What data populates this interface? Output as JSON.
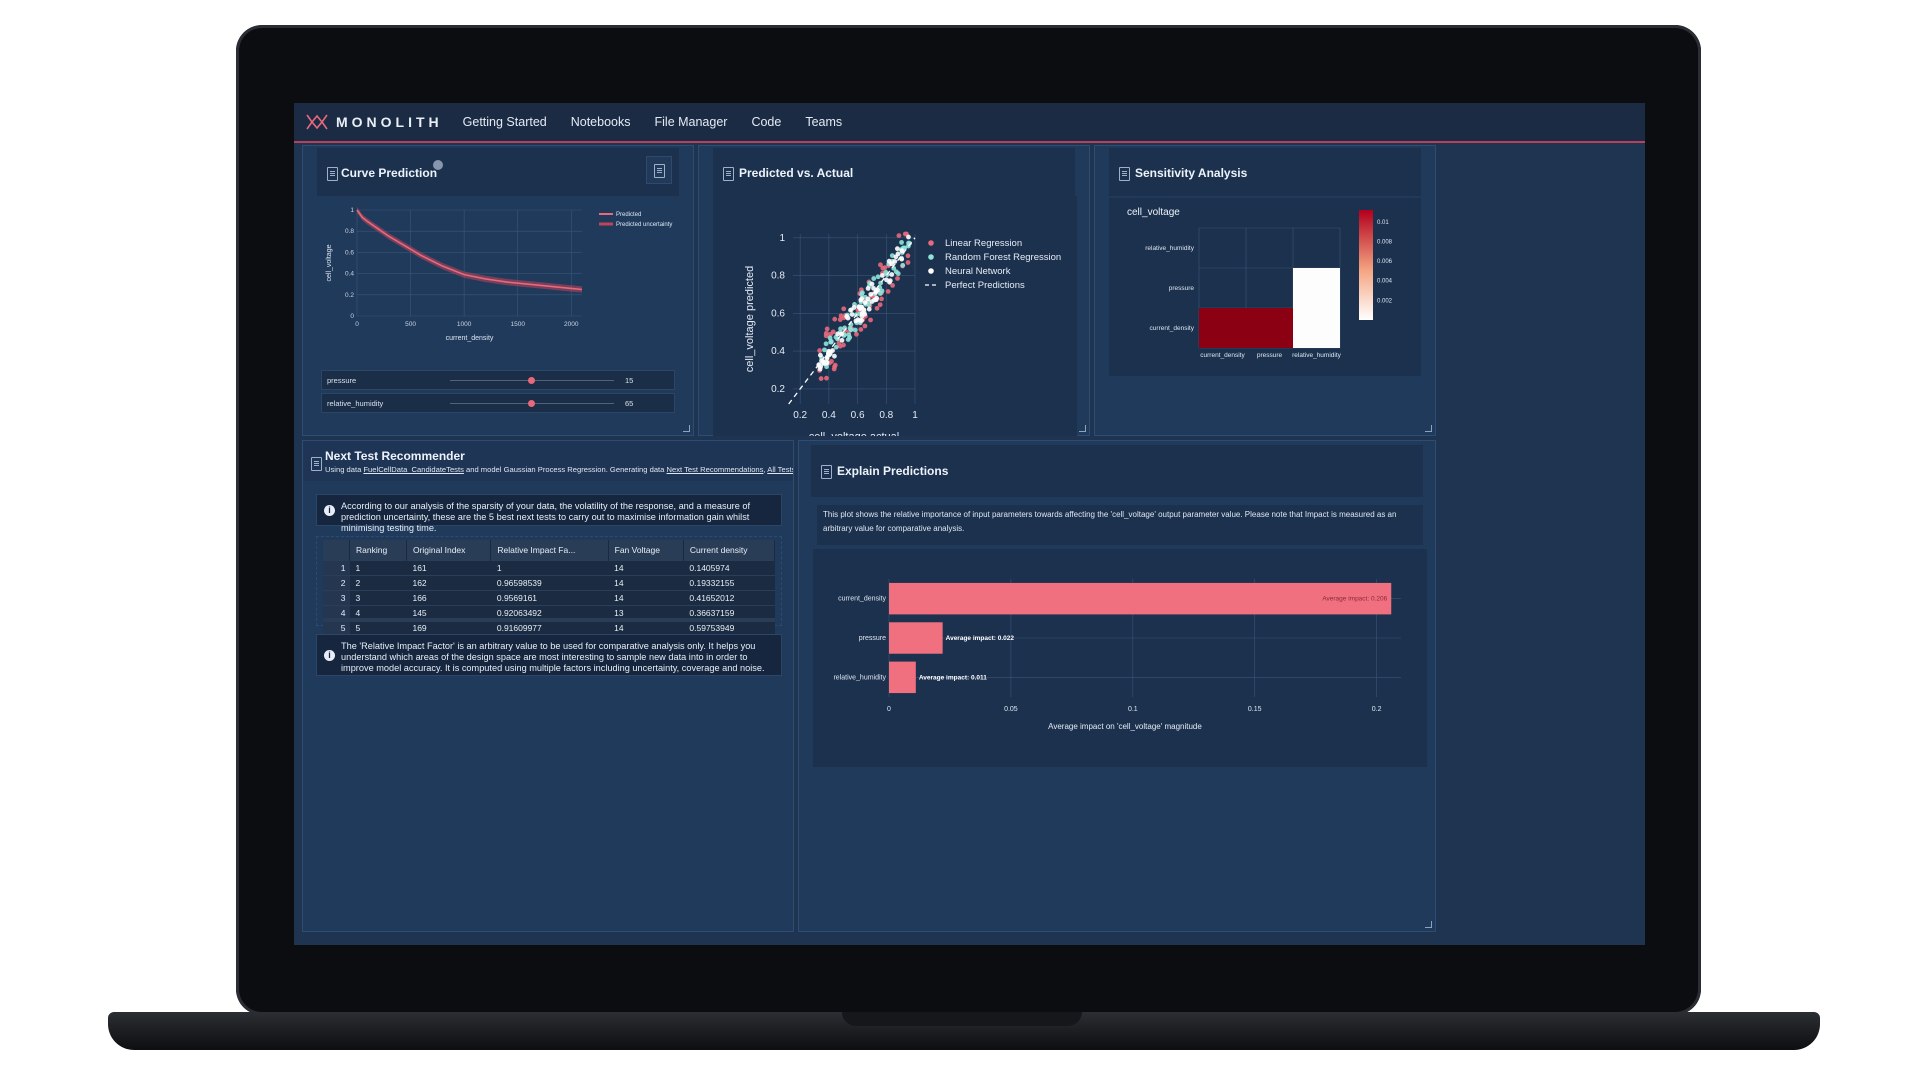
{
  "app": {
    "name": "MONOLITH"
  },
  "nav": [
    "Getting Started",
    "Notebooks",
    "File Manager",
    "Code",
    "Teams"
  ],
  "colors": {
    "accent": "#e8697b",
    "cyan": "#8fe3d9",
    "white": "#ffffff",
    "dark_red": "#8b0012"
  },
  "curve_prediction": {
    "title": "Curve Prediction",
    "icons": [
      "info-icon",
      "document-icon"
    ],
    "sliders": [
      {
        "label": "pressure",
        "value": "15",
        "fraction": 0.5
      },
      {
        "label": "relative_humidity",
        "value": "65",
        "fraction": 0.5
      }
    ]
  },
  "pred_vs_actual": {
    "title": "Predicted vs. Actual"
  },
  "sensitivity": {
    "title": "Sensitivity Analysis",
    "subtitle": "cell_voltage"
  },
  "next_test": {
    "title": "Next Test Recommender",
    "desc_prefix": "Using data ",
    "desc_link1": "FuelCellData_CandidateTests",
    "desc_mid": " and model Gaussian Process Regression. Generating data ",
    "desc_link2": "Next Test Recommendations",
    "desc_sep": ", ",
    "desc_link3": "All Tests Consid",
    "notice1": "According to our analysis of the sparsity of your data, the volatility of the response, and a measure of prediction uncertainty, these are the 5 best next tests to carry out to maximise information gain whilst minimising testing time.",
    "notice2": "The 'Relative Impact Factor' is an arbitrary value to be used for comparative analysis only. It helps you understand which areas of the design space are most interesting to sample new data into in order to improve model accuracy. It is computed using multiple factors including uncertainty, coverage and noise.",
    "columns": [
      "Ranking",
      "Original Index",
      "Relative Impact Fa...",
      "Fan Voltage",
      "Current density"
    ],
    "rows": [
      [
        "1",
        "1",
        "161",
        "1",
        "14",
        "0.1405974"
      ],
      [
        "2",
        "2",
        "162",
        "0.96598539",
        "14",
        "0.19332155"
      ],
      [
        "3",
        "3",
        "166",
        "0.9569161",
        "14",
        "0.41652012"
      ],
      [
        "4",
        "4",
        "145",
        "0.92063492",
        "13",
        "0.36637159"
      ],
      [
        "5",
        "5",
        "169",
        "0.91609977",
        "14",
        "0.59753949"
      ]
    ]
  },
  "explain": {
    "title": "Explain Predictions",
    "description": "This plot shows the relative importance of input parameters towards affecting the 'cell_voltage' output parameter value. Please note that Impact is measured as an arbitrary value for comparative analysis.",
    "toolbar_icons": [
      "camera-icon",
      "zoom-icon",
      "pan-icon",
      "select-icon",
      "lasso-icon",
      "zoom-in-icon",
      "zoom-out-icon",
      "autoscale-icon",
      "home-icon"
    ]
  },
  "chart_data": [
    {
      "id": "curve",
      "type": "line",
      "xlabel": "current_density",
      "ylabel": "cell_voltage",
      "xlim": [
        0,
        2100
      ],
      "ylim": [
        0,
        1
      ],
      "xticks": [
        0,
        500,
        1000,
        1500,
        2000
      ],
      "yticks": [
        0,
        0.2,
        0.4,
        0.6,
        0.8,
        1
      ],
      "x": [
        0,
        50,
        100,
        200,
        300,
        400,
        500,
        600,
        700,
        800,
        900,
        1000,
        1200,
        1400,
        1600,
        1800,
        2000,
        2100
      ],
      "series": [
        {
          "name": "Predicted",
          "values": [
            1.0,
            0.93,
            0.89,
            0.82,
            0.75,
            0.69,
            0.63,
            0.57,
            0.52,
            0.47,
            0.43,
            0.39,
            0.35,
            0.32,
            0.3,
            0.28,
            0.26,
            0.25
          ]
        },
        {
          "name": "Predicted uncertainty",
          "band": 0.03
        }
      ],
      "legend": "top-right"
    },
    {
      "id": "scatter",
      "type": "scatter",
      "xlabel": "cell_voltage actual",
      "ylabel": "cell_voltage predicted",
      "xlim": [
        0.15,
        1.0
      ],
      "ylim": [
        0.12,
        1.02
      ],
      "xticks": [
        0.2,
        0.4,
        0.6,
        0.8,
        1
      ],
      "yticks": [
        0.2,
        0.4,
        0.6,
        0.8,
        1
      ],
      "series": [
        {
          "name": "Linear Regression",
          "color": "#e8697b",
          "spread": 0.06
        },
        {
          "name": "Random Forest Regression",
          "color": "#8fe3d9",
          "spread": 0.035
        },
        {
          "name": "Neural Network",
          "color": "#ffffff",
          "spread": 0.03
        },
        {
          "name": "Perfect Predictions",
          "style": "dashed",
          "x": [
            0.12,
            1.0
          ],
          "y": [
            0.12,
            1.0
          ]
        }
      ],
      "point_range": [
        0.33,
        0.98
      ],
      "legend": "top-right"
    },
    {
      "id": "heatmap",
      "type": "heatmap",
      "title": "cell_voltage",
      "x": [
        "current_density",
        "pressure",
        "relative_humidity"
      ],
      "y": [
        "relative_humidity",
        "pressure",
        "current_density"
      ],
      "cells": [
        {
          "x": "current_density",
          "y": "current_density",
          "value": 0.0112
        },
        {
          "x": "pressure",
          "y": "current_density",
          "value": 0.0112
        },
        {
          "x": "relative_humidity",
          "y": "pressure",
          "value": 0.0001
        },
        {
          "x": "relative_humidity",
          "y": "current_density",
          "value": 0.0001
        }
      ],
      "colorbar_ticks": [
        0.01,
        0.008,
        0.006,
        0.004,
        0.002
      ],
      "colorbar_range": [
        0,
        0.0112
      ]
    },
    {
      "id": "importance",
      "type": "bar",
      "orientation": "horizontal",
      "xlabel": "Average impact on 'cell_voltage' magnitude",
      "categories": [
        "current_density",
        "pressure",
        "relative_humidity"
      ],
      "values": [
        0.206,
        0.022,
        0.011
      ],
      "labels": [
        "Average impact: 0.206",
        "Average impact: 0.022",
        "Average impact: 0.011"
      ],
      "xlim": [
        0,
        0.21
      ],
      "xticks": [
        0,
        0.05,
        0.1,
        0.15,
        0.2
      ]
    }
  ]
}
